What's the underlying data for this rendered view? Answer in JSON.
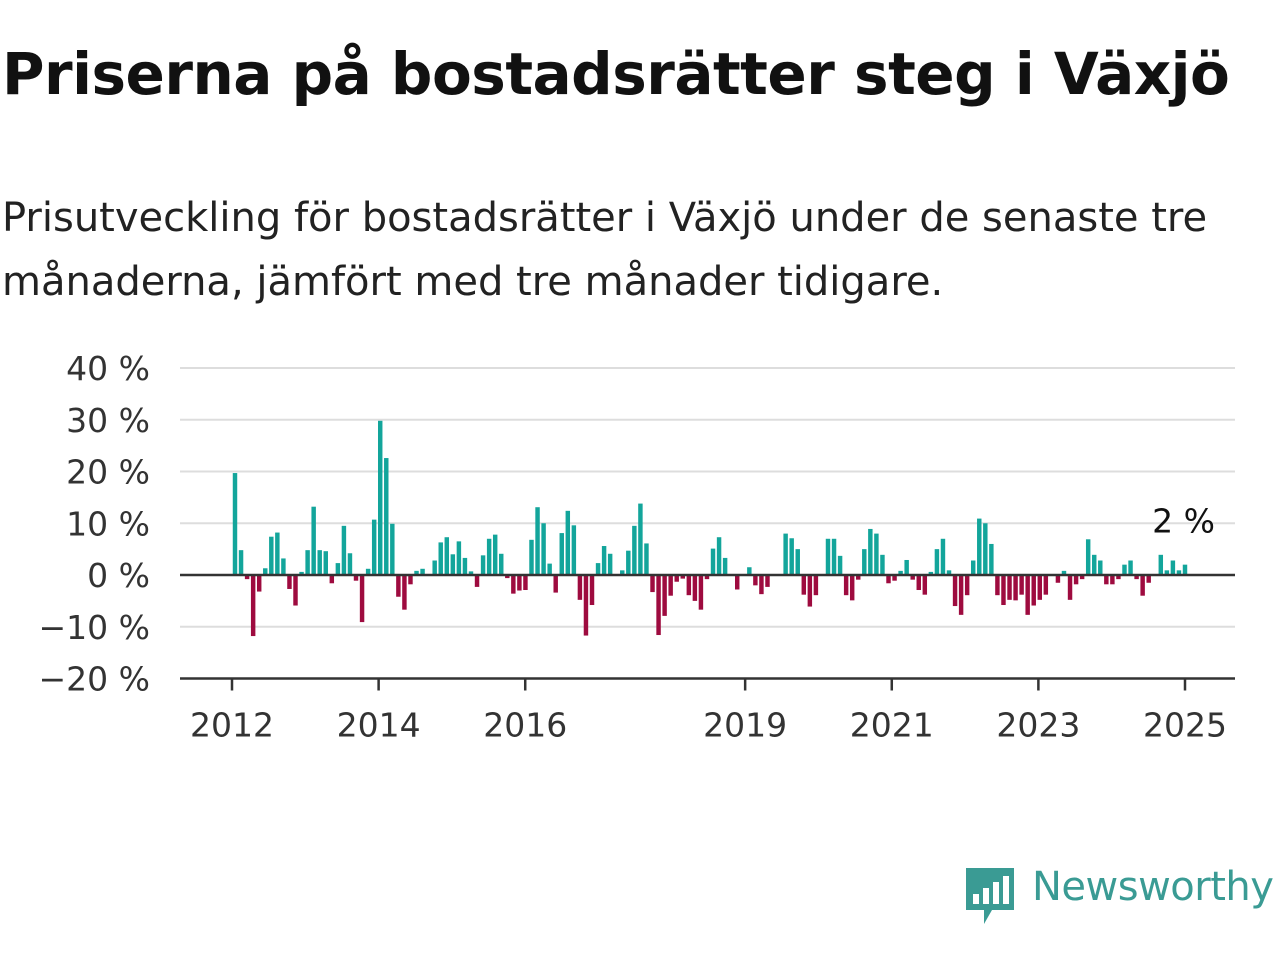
{
  "title": "Priserna på bostadsrätter steg i Växjö",
  "subtitle": "Prisutveckling för bostadsrätter i Växjö under de senaste tre månaderna, jämfört med tre månader tidigare.",
  "brand": {
    "name": "Newsworthy",
    "color": "#3a9b94"
  },
  "colors": {
    "positive": "#13a59b",
    "negative": "#9e0b3f",
    "grid": "#dddddd",
    "zero": "#333333"
  },
  "chart_data": {
    "type": "bar",
    "ylim": [
      -20,
      40
    ],
    "y_ticks": [
      40,
      30,
      20,
      10,
      0,
      -10,
      -20
    ],
    "y_tick_labels": [
      "40 %",
      "30 %",
      "20 %",
      "10 %",
      "0 %",
      "−10 %",
      "−20 %"
    ],
    "x_tick_labels": [
      "2012",
      "2014",
      "2016",
      "2019",
      "2021",
      "2023",
      "2025"
    ],
    "x_tick_years": [
      2012,
      2014,
      2016,
      2019,
      2021,
      2023,
      2025
    ],
    "x_start": 2012.0,
    "x_end": 2025.0,
    "last_value_label": "2 %",
    "grid": true,
    "values": [
      19.7,
      4.8,
      -0.8,
      -11.8,
      -3.2,
      1.3,
      7.4,
      8.2,
      3.2,
      -2.7,
      -5.9,
      0.6,
      4.8,
      13.2,
      4.8,
      4.6,
      -1.6,
      2.3,
      9.5,
      4.2,
      -1.1,
      -9.1,
      1.2,
      10.7,
      29.8,
      22.6,
      9.9,
      -4.2,
      -6.7,
      -1.8,
      0.8,
      1.2,
      0.0,
      2.8,
      6.3,
      7.3,
      4.0,
      6.5,
      3.3,
      0.7,
      -2.3,
      3.8,
      7.0,
      7.8,
      4.1,
      -0.6,
      -3.6,
      -3.0,
      -2.9,
      6.8,
      13.1,
      10.0,
      2.2,
      -3.4,
      8.1,
      12.4,
      9.6,
      -4.8,
      -11.7,
      -5.8,
      2.3,
      5.6,
      4.1,
      0.0,
      0.9,
      4.7,
      9.5,
      13.8,
      6.1,
      -3.3,
      -11.6,
      -7.9,
      -4.0,
      -1.3,
      -0.7,
      -3.9,
      -5.0,
      -6.7,
      -0.8,
      5.1,
      7.3,
      3.3,
      0.0,
      -2.8,
      0.0,
      1.5,
      -2.0,
      -3.7,
      -2.3,
      0.0,
      0.0,
      8.0,
      7.1,
      5.0,
      -3.8,
      -6.1,
      -3.9,
      0.0,
      7.0,
      7.0,
      3.7,
      -3.9,
      -4.9,
      -0.9,
      5.0,
      8.9,
      8.0,
      3.9,
      -1.6,
      -1.1,
      0.8,
      2.9,
      -0.9,
      -2.9,
      -3.8,
      0.6,
      5.0,
      7.0,
      0.9,
      -6.0,
      -7.7,
      -3.9,
      2.8,
      10.9,
      10.0,
      6.0,
      -3.9,
      -5.8,
      -4.8,
      -4.9,
      -3.8,
      -7.7,
      -5.9,
      -4.8,
      -3.8,
      0.0,
      -1.5,
      0.8,
      -4.8,
      -1.8,
      -0.8,
      6.9,
      3.9,
      2.8,
      -1.8,
      -1.8,
      -0.8,
      2.0,
      2.8,
      -0.8,
      -4.0,
      -1.5,
      0.0,
      3.9,
      0.9,
      2.8,
      0.9,
      2.0
    ]
  }
}
